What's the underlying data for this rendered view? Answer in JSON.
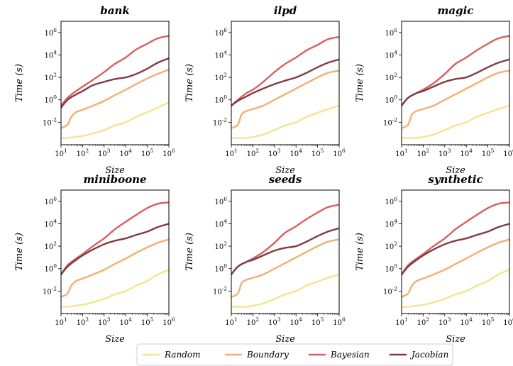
{
  "colors": {
    "Random": "#f3e492",
    "Boundary": "#f0b074",
    "Bayesian": "#d8605e",
    "Jacobian": "#7f3c43"
  },
  "legend": {
    "items": [
      "Random",
      "Boundary",
      "Bayesian",
      "Jacobian"
    ],
    "placement": "bottom-center"
  },
  "chart_data": [
    {
      "type": "line",
      "title": "bank",
      "xlabel": "Size",
      "ylabel": "Time (s)",
      "xscale": "log",
      "yscale": "log",
      "xlim": [
        10,
        1000000
      ],
      "ylim": [
        0.0001,
        10000000
      ],
      "xticks": [
        {
          "base": "10",
          "exp": "1"
        },
        {
          "base": "10",
          "exp": "2"
        },
        {
          "base": "10",
          "exp": "3"
        },
        {
          "base": "10",
          "exp": "4"
        },
        {
          "base": "10",
          "exp": "5"
        },
        {
          "base": "10",
          "exp": "6"
        }
      ],
      "yticks": [
        {
          "base": "10",
          "exp": "-2"
        },
        {
          "base": "10",
          "exp": "0"
        },
        {
          "base": "10",
          "exp": "2"
        },
        {
          "base": "10",
          "exp": "4"
        },
        {
          "base": "10",
          "exp": "6"
        }
      ],
      "series": [
        {
          "name": "Random",
          "x": [
            10,
            20,
            50,
            100,
            300,
            1000,
            3000,
            10000,
            30000,
            100000,
            300000,
            1000000
          ],
          "y": [
            0.0004,
            0.0004,
            0.0005,
            0.0006,
            0.001,
            0.002,
            0.005,
            0.01,
            0.03,
            0.08,
            0.2,
            0.6
          ]
        },
        {
          "name": "Boundary",
          "x": [
            10,
            20,
            30,
            50,
            100,
            300,
            1000,
            3000,
            10000,
            30000,
            100000,
            300000,
            1000000
          ],
          "y": [
            0.003,
            0.006,
            0.03,
            0.08,
            0.13,
            0.3,
            0.8,
            2.5,
            8,
            25,
            80,
            200,
            500
          ]
        },
        {
          "name": "Bayesian",
          "x": [
            10,
            20,
            50,
            100,
            300,
            1000,
            3000,
            10000,
            30000,
            100000,
            300000,
            1000000
          ],
          "y": [
            0.3,
            1.5,
            6,
            15,
            60,
            300,
            1500,
            6000,
            30000,
            100000,
            300000,
            500000
          ]
        },
        {
          "name": "Jacobian",
          "x": [
            10,
            20,
            50,
            100,
            300,
            1000,
            3000,
            10000,
            30000,
            100000,
            300000,
            1000000
          ],
          "y": [
            0.2,
            1,
            3,
            6,
            20,
            40,
            70,
            100,
            200,
            600,
            2000,
            5000
          ]
        }
      ]
    },
    {
      "type": "line",
      "title": "ilpd",
      "xlabel": "Size",
      "ylabel": "Time (s)",
      "xscale": "log",
      "yscale": "log",
      "xlim": [
        10,
        1000000
      ],
      "ylim": [
        0.0001,
        10000000
      ],
      "xticks": [
        {
          "base": "10",
          "exp": "1"
        },
        {
          "base": "10",
          "exp": "2"
        },
        {
          "base": "10",
          "exp": "3"
        },
        {
          "base": "10",
          "exp": "4"
        },
        {
          "base": "10",
          "exp": "5"
        },
        {
          "base": "10",
          "exp": "6"
        }
      ],
      "yticks": [
        {
          "base": "10",
          "exp": "-2"
        },
        {
          "base": "10",
          "exp": "0"
        },
        {
          "base": "10",
          "exp": "2"
        },
        {
          "base": "10",
          "exp": "4"
        },
        {
          "base": "10",
          "exp": "6"
        }
      ],
      "series": [
        {
          "name": "Random",
          "x": [
            10,
            20,
            50,
            100,
            300,
            1000,
            3000,
            10000,
            30000,
            100000,
            300000,
            1000000
          ],
          "y": [
            0.0004,
            0.0004,
            0.0004,
            0.0005,
            0.0008,
            0.002,
            0.005,
            0.01,
            0.03,
            0.07,
            0.15,
            0.3
          ]
        },
        {
          "name": "Boundary",
          "x": [
            10,
            20,
            30,
            50,
            100,
            300,
            1000,
            3000,
            10000,
            30000,
            100000,
            300000,
            1000000
          ],
          "y": [
            0.003,
            0.006,
            0.05,
            0.1,
            0.15,
            0.3,
            1,
            3,
            10,
            30,
            100,
            250,
            400
          ]
        },
        {
          "name": "Bayesian",
          "x": [
            10,
            20,
            50,
            100,
            300,
            1000,
            3000,
            10000,
            30000,
            100000,
            300000,
            1000000
          ],
          "y": [
            0.3,
            1,
            4,
            8,
            40,
            300,
            1500,
            6000,
            25000,
            80000,
            250000,
            400000
          ]
        },
        {
          "name": "Jacobian",
          "x": [
            10,
            20,
            50,
            100,
            300,
            1000,
            3000,
            10000,
            30000,
            100000,
            300000,
            1000000
          ],
          "y": [
            0.3,
            0.8,
            2,
            4,
            10,
            25,
            50,
            100,
            250,
            800,
            2000,
            4000
          ]
        }
      ]
    },
    {
      "type": "line",
      "title": "magic",
      "xlabel": "Size",
      "ylabel": "Time (s)",
      "xscale": "log",
      "yscale": "log",
      "xlim": [
        10,
        1000000
      ],
      "ylim": [
        0.0001,
        10000000
      ],
      "xticks": [
        {
          "base": "10",
          "exp": "1"
        },
        {
          "base": "10",
          "exp": "2"
        },
        {
          "base": "10",
          "exp": "3"
        },
        {
          "base": "10",
          "exp": "4"
        },
        {
          "base": "10",
          "exp": "5"
        },
        {
          "base": "10",
          "exp": "6"
        }
      ],
      "yticks": [
        {
          "base": "10",
          "exp": "-2"
        },
        {
          "base": "10",
          "exp": "0"
        },
        {
          "base": "10",
          "exp": "2"
        },
        {
          "base": "10",
          "exp": "4"
        },
        {
          "base": "10",
          "exp": "6"
        }
      ],
      "series": [
        {
          "name": "Random",
          "x": [
            10,
            20,
            50,
            100,
            300,
            1000,
            3000,
            10000,
            30000,
            100000,
            300000,
            1000000
          ],
          "y": [
            0.0004,
            0.0004,
            0.0004,
            0.0005,
            0.0008,
            0.002,
            0.005,
            0.01,
            0.03,
            0.07,
            0.15,
            0.3
          ]
        },
        {
          "name": "Boundary",
          "x": [
            10,
            20,
            30,
            50,
            100,
            300,
            1000,
            3000,
            10000,
            30000,
            100000,
            300000,
            1000000
          ],
          "y": [
            0.003,
            0.006,
            0.05,
            0.1,
            0.15,
            0.3,
            1,
            3,
            10,
            30,
            100,
            250,
            400
          ]
        },
        {
          "name": "Bayesian",
          "x": [
            10,
            20,
            50,
            100,
            300,
            1000,
            3000,
            10000,
            30000,
            100000,
            300000,
            1000000
          ],
          "y": [
            0.3,
            1.5,
            4,
            8,
            30,
            200,
            1500,
            6000,
            25000,
            100000,
            300000,
            500000
          ]
        },
        {
          "name": "Jacobian",
          "x": [
            10,
            20,
            50,
            100,
            300,
            1000,
            3000,
            10000,
            30000,
            100000,
            300000,
            1000000
          ],
          "y": [
            0.3,
            1.5,
            4,
            6,
            15,
            40,
            70,
            100,
            250,
            800,
            2000,
            4000
          ]
        }
      ]
    },
    {
      "type": "line",
      "title": "miniboone",
      "xlabel": "Size",
      "ylabel": "Time (s)",
      "xscale": "log",
      "yscale": "log",
      "xlim": [
        10,
        1000000
      ],
      "ylim": [
        0.0001,
        10000000
      ],
      "xticks": [
        {
          "base": "10",
          "exp": "1"
        },
        {
          "base": "10",
          "exp": "2"
        },
        {
          "base": "10",
          "exp": "3"
        },
        {
          "base": "10",
          "exp": "4"
        },
        {
          "base": "10",
          "exp": "5"
        },
        {
          "base": "10",
          "exp": "6"
        }
      ],
      "yticks": [
        {
          "base": "10",
          "exp": "-2"
        },
        {
          "base": "10",
          "exp": "0"
        },
        {
          "base": "10",
          "exp": "2"
        },
        {
          "base": "10",
          "exp": "4"
        },
        {
          "base": "10",
          "exp": "6"
        }
      ],
      "series": [
        {
          "name": "Random",
          "x": [
            10,
            20,
            50,
            100,
            300,
            1000,
            3000,
            10000,
            30000,
            100000,
            300000,
            1000000
          ],
          "y": [
            0.0004,
            0.0004,
            0.0005,
            0.0006,
            0.001,
            0.002,
            0.005,
            0.01,
            0.03,
            0.08,
            0.3,
            0.8
          ]
        },
        {
          "name": "Boundary",
          "x": [
            10,
            20,
            30,
            50,
            100,
            300,
            1000,
            3000,
            10000,
            30000,
            100000,
            300000,
            1000000
          ],
          "y": [
            0.003,
            0.006,
            0.03,
            0.08,
            0.13,
            0.3,
            0.8,
            2.5,
            8,
            25,
            80,
            200,
            400
          ]
        },
        {
          "name": "Bayesian",
          "x": [
            10,
            20,
            50,
            100,
            300,
            1000,
            3000,
            10000,
            30000,
            100000,
            300000,
            1000000
          ],
          "y": [
            0.3,
            2,
            8,
            20,
            100,
            500,
            3000,
            15000,
            60000,
            250000,
            600000,
            800000
          ]
        },
        {
          "name": "Jacobian",
          "x": [
            10,
            20,
            50,
            100,
            300,
            1000,
            3000,
            10000,
            30000,
            100000,
            300000,
            1000000
          ],
          "y": [
            0.3,
            1.5,
            6,
            15,
            50,
            150,
            300,
            500,
            1000,
            2000,
            5000,
            10000
          ]
        }
      ]
    },
    {
      "type": "line",
      "title": "seeds",
      "xlabel": "Size",
      "ylabel": "Time (s)",
      "xscale": "log",
      "yscale": "log",
      "xlim": [
        10,
        1000000
      ],
      "ylim": [
        0.0001,
        10000000
      ],
      "xticks": [
        {
          "base": "10",
          "exp": "1"
        },
        {
          "base": "10",
          "exp": "2"
        },
        {
          "base": "10",
          "exp": "3"
        },
        {
          "base": "10",
          "exp": "4"
        },
        {
          "base": "10",
          "exp": "5"
        },
        {
          "base": "10",
          "exp": "6"
        }
      ],
      "yticks": [
        {
          "base": "10",
          "exp": "-2"
        },
        {
          "base": "10",
          "exp": "0"
        },
        {
          "base": "10",
          "exp": "2"
        },
        {
          "base": "10",
          "exp": "4"
        },
        {
          "base": "10",
          "exp": "6"
        }
      ],
      "series": [
        {
          "name": "Random",
          "x": [
            10,
            20,
            50,
            100,
            300,
            1000,
            3000,
            10000,
            30000,
            100000,
            300000,
            1000000
          ],
          "y": [
            0.0004,
            0.0004,
            0.0004,
            0.0005,
            0.0008,
            0.002,
            0.005,
            0.01,
            0.03,
            0.07,
            0.15,
            0.3
          ]
        },
        {
          "name": "Boundary",
          "x": [
            10,
            20,
            30,
            50,
            100,
            300,
            1000,
            3000,
            10000,
            30000,
            100000,
            300000,
            1000000
          ],
          "y": [
            0.003,
            0.006,
            0.05,
            0.1,
            0.15,
            0.3,
            1,
            3,
            10,
            30,
            100,
            250,
            400
          ]
        },
        {
          "name": "Bayesian",
          "x": [
            10,
            20,
            50,
            100,
            300,
            1000,
            3000,
            10000,
            30000,
            100000,
            300000,
            1000000
          ],
          "y": [
            0.3,
            1.5,
            4,
            8,
            30,
            200,
            1500,
            6000,
            25000,
            100000,
            300000,
            500000
          ]
        },
        {
          "name": "Jacobian",
          "x": [
            10,
            20,
            50,
            100,
            300,
            1000,
            3000,
            10000,
            30000,
            100000,
            300000,
            1000000
          ],
          "y": [
            0.3,
            1.5,
            4,
            6,
            15,
            40,
            70,
            100,
            250,
            800,
            2000,
            4000
          ]
        }
      ]
    },
    {
      "type": "line",
      "title": "synthetic",
      "xlabel": "Size",
      "ylabel": "Time (s)",
      "xscale": "log",
      "yscale": "log",
      "xlim": [
        10,
        1000000
      ],
      "ylim": [
        0.0001,
        10000000
      ],
      "xticks": [
        {
          "base": "10",
          "exp": "1"
        },
        {
          "base": "10",
          "exp": "2"
        },
        {
          "base": "10",
          "exp": "3"
        },
        {
          "base": "10",
          "exp": "4"
        },
        {
          "base": "10",
          "exp": "5"
        },
        {
          "base": "10",
          "exp": "6"
        }
      ],
      "yticks": [
        {
          "base": "10",
          "exp": "-2"
        },
        {
          "base": "10",
          "exp": "0"
        },
        {
          "base": "10",
          "exp": "2"
        },
        {
          "base": "10",
          "exp": "4"
        },
        {
          "base": "10",
          "exp": "6"
        }
      ],
      "series": [
        {
          "name": "Random",
          "x": [
            10,
            20,
            50,
            100,
            300,
            1000,
            3000,
            10000,
            30000,
            100000,
            300000,
            1000000
          ],
          "y": [
            0.0004,
            0.0004,
            0.0005,
            0.0006,
            0.001,
            0.002,
            0.005,
            0.01,
            0.03,
            0.08,
            0.3,
            0.8
          ]
        },
        {
          "name": "Boundary",
          "x": [
            10,
            20,
            30,
            50,
            100,
            300,
            1000,
            3000,
            10000,
            30000,
            100000,
            300000,
            1000000
          ],
          "y": [
            0.003,
            0.006,
            0.03,
            0.08,
            0.13,
            0.3,
            0.8,
            2.5,
            8,
            25,
            80,
            200,
            400
          ]
        },
        {
          "name": "Bayesian",
          "x": [
            10,
            20,
            50,
            100,
            300,
            1000,
            3000,
            10000,
            30000,
            100000,
            300000,
            1000000
          ],
          "y": [
            0.3,
            2,
            8,
            20,
            100,
            500,
            3000,
            15000,
            60000,
            250000,
            600000,
            800000
          ]
        },
        {
          "name": "Jacobian",
          "x": [
            10,
            20,
            50,
            100,
            300,
            1000,
            3000,
            10000,
            30000,
            100000,
            300000,
            1000000
          ],
          "y": [
            0.3,
            1.5,
            6,
            15,
            50,
            150,
            300,
            500,
            1000,
            2000,
            5000,
            10000
          ]
        }
      ]
    }
  ]
}
